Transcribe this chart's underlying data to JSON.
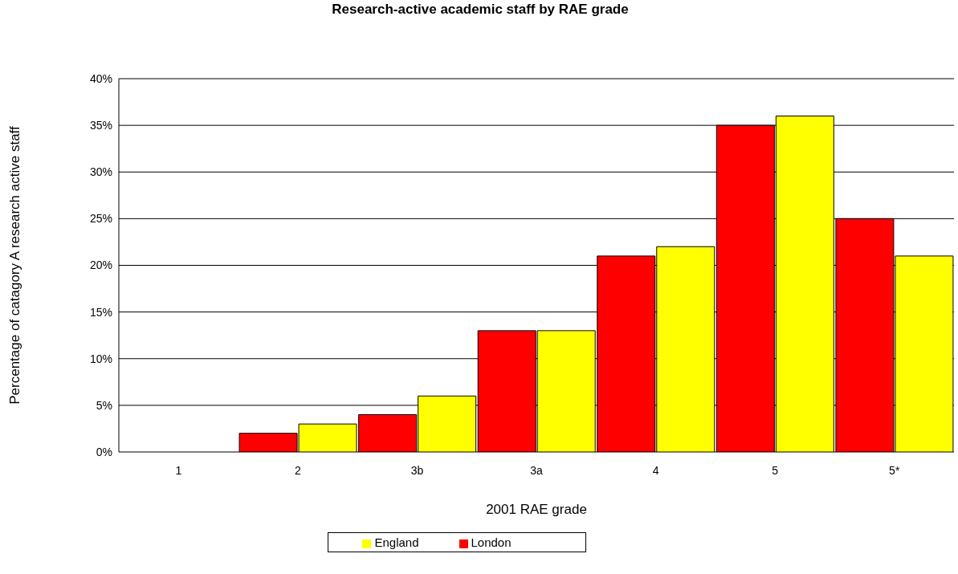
{
  "chart_data": {
    "type": "bar",
    "title": "Research-active academic staff by RAE grade",
    "xlabel": "2001 RAE grade",
    "ylabel": "Percentage of catagory A research active staff",
    "categories": [
      "1",
      "2",
      "3b",
      "3a",
      "4",
      "5",
      "5*"
    ],
    "series": [
      {
        "name": "London",
        "color": "#ff0000",
        "values": [
          0,
          2,
          4,
          13,
          21,
          35,
          25
        ]
      },
      {
        "name": "England",
        "color": "#ffff00",
        "values": [
          0,
          3,
          6,
          13,
          22,
          36,
          21
        ]
      }
    ],
    "ylim": [
      0,
      40
    ],
    "yticks": [
      {
        "value": 0,
        "label": "0%"
      },
      {
        "value": 5,
        "label": "5%"
      },
      {
        "value": 10,
        "label": "10%"
      },
      {
        "value": 15,
        "label": "15%"
      },
      {
        "value": 20,
        "label": "20%"
      },
      {
        "value": 25,
        "label": "25%"
      },
      {
        "value": 30,
        "label": "30%"
      },
      {
        "value": 35,
        "label": "35%"
      },
      {
        "value": 40,
        "label": "40%"
      }
    ],
    "grid": "y",
    "legend": "bottom"
  }
}
